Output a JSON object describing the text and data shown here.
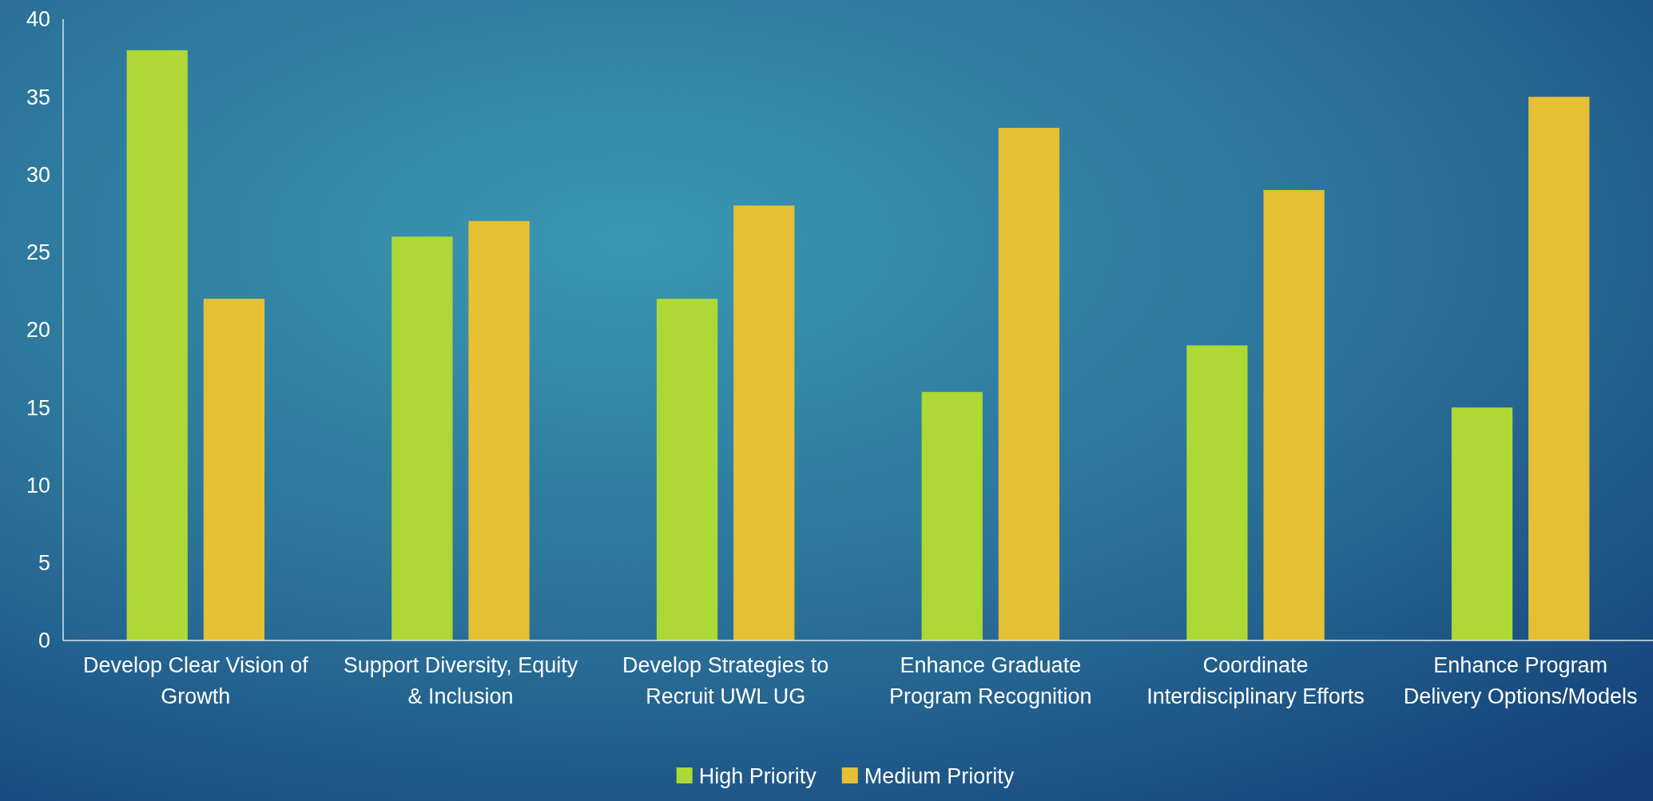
{
  "chart_data": {
    "type": "bar",
    "categories": [
      "Develop Clear Vision of Growth",
      "Support Diversity, Equity & Inclusion",
      "Develop Strategies to Recruit UWL UG",
      "Enhance Graduate Program Recognition",
      "Coordinate Interdisciplinary Efforts",
      "Enhance Program Delivery Options/Models"
    ],
    "series": [
      {
        "name": "High Priority",
        "color": "#add836",
        "values": [
          38,
          26,
          22,
          16,
          19,
          15
        ]
      },
      {
        "name": "Medium Priority",
        "color": "#e5c034",
        "values": [
          22,
          27,
          28,
          33,
          29,
          35
        ]
      }
    ],
    "ylim": [
      0,
      40
    ],
    "yticks": [
      0,
      5,
      10,
      15,
      20,
      25,
      30,
      35,
      40
    ],
    "grid": false,
    "legend": "bottom"
  }
}
